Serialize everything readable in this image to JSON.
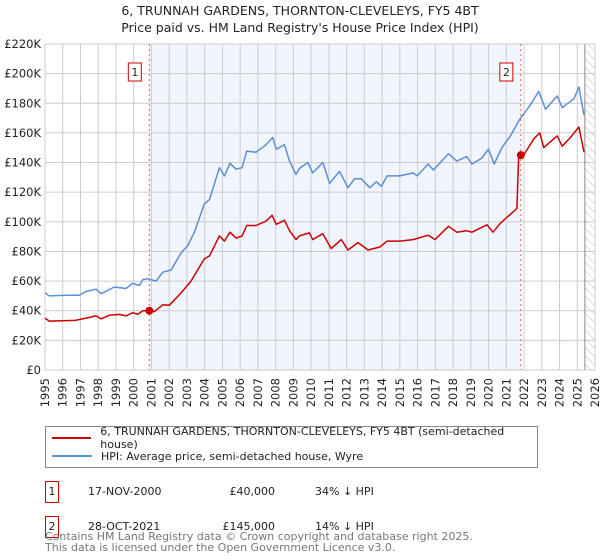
{
  "colors": {
    "property": "#cc0000",
    "hpi": "#5b8fd6",
    "shade": "#f1f5fd",
    "grid": "#cccccc",
    "marker_line": "#e06060"
  },
  "chart_data": {
    "type": "line",
    "title": "6, TRUNNAH GARDENS, THORNTON-CLEVELEYS, FY5 4BT",
    "subtitle": "Price paid vs. HM Land Registry's House Price Index (HPI)",
    "xlim": [
      1995,
      2026
    ],
    "ylim": [
      0,
      220000
    ],
    "x_ticks": [
      "1995",
      "1996",
      "1997",
      "1998",
      "1999",
      "2000",
      "2001",
      "2002",
      "2003",
      "2004",
      "2005",
      "2006",
      "2007",
      "2008",
      "2009",
      "2010",
      "2011",
      "2012",
      "2013",
      "2014",
      "2015",
      "2016",
      "2017",
      "2018",
      "2019",
      "2020",
      "2021",
      "2022",
      "2023",
      "2024",
      "2025",
      "2026"
    ],
    "y_ticks": [
      {
        "v": 0,
        "label": "£0"
      },
      {
        "v": 20000,
        "label": "£20K"
      },
      {
        "v": 40000,
        "label": "£40K"
      },
      {
        "v": 60000,
        "label": "£60K"
      },
      {
        "v": 80000,
        "label": "£80K"
      },
      {
        "v": 100000,
        "label": "£100K"
      },
      {
        "v": 120000,
        "label": "£120K"
      },
      {
        "v": 140000,
        "label": "£140K"
      },
      {
        "v": 160000,
        "label": "£160K"
      },
      {
        "v": 180000,
        "label": "£180K"
      },
      {
        "v": 200000,
        "label": "£200K"
      },
      {
        "v": 220000,
        "label": "£220K"
      }
    ],
    "grid": true,
    "shaded_range": [
      2000.88,
      2021.82
    ],
    "hatched_from": 2025.43,
    "series": [
      {
        "name": "6, TRUNNAH GARDENS, THORNTON-CLEVELEYS, FY5 4BT (semi-detached house)",
        "key": "property",
        "x": [
          1995,
          1995.24,
          1996.7,
          1997.31,
          1997.88,
          1998.16,
          1998.63,
          1999.19,
          1999.57,
          1999.94,
          2000.23,
          2000.51,
          2000.88,
          2001.17,
          2001.64,
          2002.01,
          2002.67,
          2003.23,
          2003.98,
          2004.27,
          2004.83,
          2005.11,
          2005.43,
          2005.77,
          2006.11,
          2006.37,
          2006.9,
          2007.46,
          2007.8,
          2008.03,
          2008.5,
          2008.78,
          2009.15,
          2009.34,
          2009.91,
          2010.09,
          2010.66,
          2011.13,
          2011.7,
          2012.08,
          2012.64,
          2013.21,
          2013.87,
          2014.28,
          2015.0,
          2015.75,
          2016.6,
          2016.98,
          2017.74,
          2018.21,
          2018.77,
          2019.06,
          2019.91,
          2020.25,
          2020.66,
          2021.6,
          2021.7,
          2021.82,
          2021.98,
          2022.55,
          2022.89,
          2023.11,
          2023.87,
          2024.15,
          2024.62,
          2025.09,
          2025.38
        ],
        "y": [
          35,
          33,
          33.5,
          35,
          36.5,
          34.5,
          37,
          37.5,
          36.5,
          38.7,
          37.5,
          40,
          40,
          39.4,
          44,
          43.7,
          52,
          60,
          75,
          77,
          90.5,
          87,
          93,
          89,
          90.5,
          97.5,
          97.5,
          100.5,
          104.4,
          98.3,
          101,
          94,
          88,
          90.5,
          92.5,
          88,
          92,
          82,
          88,
          81,
          86,
          81,
          83,
          87,
          87,
          88,
          91,
          88,
          97,
          93,
          94,
          93,
          98,
          93,
          99,
          109,
          145,
          145,
          145,
          156,
          160,
          150,
          158,
          151,
          157,
          164,
          147
        ]
      },
      {
        "name": "HPI: Average price, semi-detached house, Wyre",
        "key": "hpi",
        "x": [
          1995,
          1995.24,
          1996.18,
          1996.94,
          1997.31,
          1997.88,
          1998.16,
          1998.91,
          1999.57,
          1999.94,
          2000.32,
          2000.51,
          2000.79,
          2001.26,
          2001.64,
          2002.11,
          2002.67,
          2003.05,
          2003.42,
          2003.98,
          2004.27,
          2004.83,
          2005.11,
          2005.43,
          2005.77,
          2006.11,
          2006.37,
          2006.9,
          2007.46,
          2007.84,
          2008.03,
          2008.5,
          2008.78,
          2009.15,
          2009.34,
          2009.81,
          2010.09,
          2010.66,
          2011.04,
          2011.6,
          2012.08,
          2012.45,
          2012.83,
          2013.3,
          2013.68,
          2013.96,
          2014.28,
          2015.0,
          2015.75,
          2015.98,
          2016.6,
          2016.89,
          2017.74,
          2018.21,
          2018.77,
          2019.06,
          2019.62,
          2020.0,
          2020.32,
          2020.75,
          2021.23,
          2021.75,
          2022.36,
          2022.83,
          2023.21,
          2023.87,
          2024.15,
          2024.81,
          2025.09,
          2025.38
        ],
        "y": [
          52,
          50,
          50.5,
          50.5,
          53,
          54.5,
          51.5,
          56,
          55,
          58.5,
          57,
          61,
          61.6,
          60,
          66,
          67.5,
          79,
          84,
          93,
          112,
          115,
          136.5,
          131,
          139.5,
          135.5,
          136.5,
          147.7,
          147,
          152,
          157,
          149,
          152,
          141,
          132,
          136,
          140,
          133,
          140,
          126,
          134,
          123,
          129,
          129,
          123,
          127,
          124,
          131,
          131,
          133,
          131,
          139,
          135,
          146,
          141,
          144,
          139,
          143,
          149,
          139,
          150,
          158,
          169,
          179,
          188,
          176,
          185,
          177,
          183,
          191,
          172
        ]
      }
    ],
    "sales": [
      {
        "label": "1",
        "x": 2000.88,
        "y": 40000
      },
      {
        "label": "2",
        "x": 2021.82,
        "y": 145000
      }
    ],
    "legend": "below"
  },
  "legend": {
    "property": "6, TRUNNAH GARDENS, THORNTON-CLEVELEYS, FY5 4BT (semi-detached house)",
    "hpi": "HPI: Average price, semi-detached house, Wyre"
  },
  "sales_table": [
    {
      "num": "1",
      "date": "17-NOV-2000",
      "price": "£40,000",
      "hpi": "34% ↓ HPI"
    },
    {
      "num": "2",
      "date": "28-OCT-2021",
      "price": "£145,000",
      "hpi": "14% ↓ HPI"
    }
  ],
  "footer": {
    "line1": "Contains HM Land Registry data © Crown copyright and database right 2025.",
    "line2": "This data is licensed under the Open Government Licence v3.0."
  }
}
